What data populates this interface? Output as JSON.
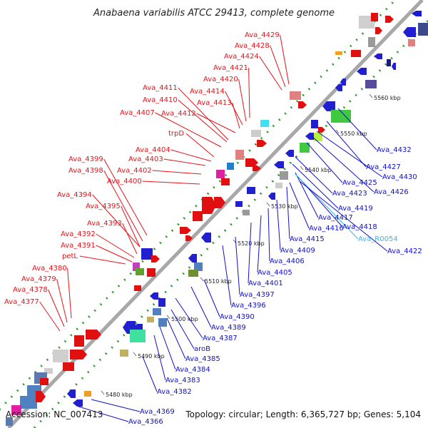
{
  "title": "Anabaena variabilis ATCC 29413, complete genome",
  "footer": {
    "accession": "Accession: NC_007413",
    "summary": "Topology: circular; Length: 6,365,727 bp; Genes: 5,104"
  },
  "colors": {
    "backbone": "#a8a8a8",
    "plus_strand_label": "#e8131a",
    "minus_strand_label": "#1010cc",
    "rna_label": "#38b8e8",
    "tick": "#2e9a2e"
  },
  "ruler_ticks": [
    {
      "label": "5480 kbp"
    },
    {
      "label": "5490 kbp"
    },
    {
      "label": "5500 kbp"
    },
    {
      "label": "5510 kbp"
    },
    {
      "label": "5520 kbp"
    },
    {
      "label": "5530 kbp"
    },
    {
      "label": "5540 kbp"
    },
    {
      "label": "5550 kbp"
    },
    {
      "label": "5560 kbp"
    }
  ],
  "red_labels": [
    {
      "text": "Ava_4429"
    },
    {
      "text": "Ava_4428"
    },
    {
      "text": "Ava_4424"
    },
    {
      "text": "Ava_4421"
    },
    {
      "text": "Ava_4420"
    },
    {
      "text": "Ava_4411"
    },
    {
      "text": "Ava_4414"
    },
    {
      "text": "Ava_4410"
    },
    {
      "text": "Ava_4413"
    },
    {
      "text": "Ava_4407"
    },
    {
      "text": "Ava_4412"
    },
    {
      "text": "trpD"
    },
    {
      "text": "Ava_4404"
    },
    {
      "text": "Ava_4403"
    },
    {
      "text": "Ava_4399"
    },
    {
      "text": "Ava_4402"
    },
    {
      "text": "Ava_4398"
    },
    {
      "text": "Ava_4400"
    },
    {
      "text": "Ava_4394"
    },
    {
      "text": "Ava_4395"
    },
    {
      "text": "Ava_4393"
    },
    {
      "text": "Ava_4392"
    },
    {
      "text": "Ava_4391"
    },
    {
      "text": "petL"
    },
    {
      "text": "Ava_4380"
    },
    {
      "text": "Ava_4379"
    },
    {
      "text": "Ava_4378"
    },
    {
      "text": "Ava_4377"
    }
  ],
  "blue_labels": [
    {
      "text": "Ava_4432"
    },
    {
      "text": "Ava_4427"
    },
    {
      "text": "Ava_4430"
    },
    {
      "text": "Ava_4425"
    },
    {
      "text": "Ava_4423"
    },
    {
      "text": "Ava_4426"
    },
    {
      "text": "Ava_4419"
    },
    {
      "text": "Ava_4417"
    },
    {
      "text": "Ava_4416"
    },
    {
      "text": "Ava_4418"
    },
    {
      "text": "Ava_4415"
    },
    {
      "text": "Ava_R0054",
      "rna": true
    },
    {
      "text": "Ava_4409"
    },
    {
      "text": "Ava_4422"
    },
    {
      "text": "Ava_4406"
    },
    {
      "text": "Ava_4405"
    },
    {
      "text": "Ava_4401"
    },
    {
      "text": "Ava_4397"
    },
    {
      "text": "Ava_4396"
    },
    {
      "text": "Ava_4390"
    },
    {
      "text": "Ava_4389"
    },
    {
      "text": "Ava_4387"
    },
    {
      "text": "aroB"
    },
    {
      "text": "Ava_4385"
    },
    {
      "text": "Ava_4384"
    },
    {
      "text": "Ava_4383"
    },
    {
      "text": "Ava_4382"
    },
    {
      "text": "Ava_4369"
    },
    {
      "text": "Ava_4366"
    }
  ]
}
